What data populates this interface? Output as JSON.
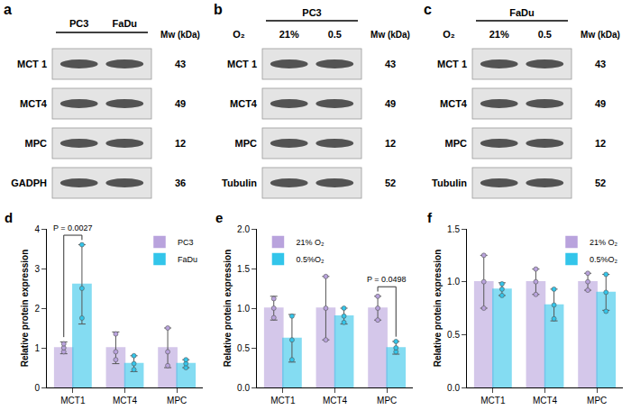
{
  "blots": [
    {
      "panel": "a",
      "columns": [
        "PC3",
        "FaDu"
      ],
      "mw_header": "Mw (kDa)",
      "rows": [
        {
          "label": "MCT 1",
          "mw": 43
        },
        {
          "label": "MCT4",
          "mw": 49
        },
        {
          "label": "MPC",
          "mw": 12
        },
        {
          "label": "GADPH",
          "mw": 36
        }
      ]
    },
    {
      "panel": "b",
      "group": "PC3",
      "condition_label": "O₂",
      "columns": [
        "21%",
        "0.5"
      ],
      "mw_header": "Mw (kDa)",
      "rows": [
        {
          "label": "MCT 1",
          "mw": 43
        },
        {
          "label": "MCT4",
          "mw": 49
        },
        {
          "label": "MPC",
          "mw": 12
        },
        {
          "label": "Tubulin",
          "mw": 52
        }
      ]
    },
    {
      "panel": "c",
      "group": "FaDu",
      "condition_label": "O₂",
      "columns": [
        "21%",
        "0.5"
      ],
      "mw_header": "Mw (kDa)",
      "rows": [
        {
          "label": "MCT 1",
          "mw": 43
        },
        {
          "label": "MCT4",
          "mw": 49
        },
        {
          "label": "MPC",
          "mw": 12
        },
        {
          "label": "Tubulin",
          "mw": 52
        }
      ]
    }
  ],
  "chart_data": [
    {
      "type": "bar",
      "panel": "d",
      "y_label": "Relative protein expression",
      "categories": [
        "MCT1",
        "MCT4",
        "MPC"
      ],
      "series": [
        {
          "name": "PC3",
          "color": "#b9a3dd",
          "values": [
            1.0,
            1.0,
            1.0
          ],
          "errors": [
            0.15,
            0.4,
            0.5
          ],
          "points": [
            [
              0.9,
              1.0,
              1.1
            ],
            [
              0.7,
              0.9,
              1.35
            ],
            [
              0.55,
              0.9,
              1.5
            ]
          ]
        },
        {
          "name": "FaDu",
          "color": "#33c5ea",
          "values": [
            2.6,
            0.6,
            0.6
          ],
          "errors": [
            1.0,
            0.2,
            0.1
          ],
          "points": [
            [
              1.75,
              2.5,
              3.6
            ],
            [
              0.45,
              0.6,
              0.8
            ],
            [
              0.5,
              0.6,
              0.7
            ]
          ]
        }
      ],
      "annotations": [
        {
          "category": "MCT1",
          "text": "P = 0.0027"
        }
      ],
      "ylim": [
        0,
        4
      ],
      "yticks": [
        0,
        1,
        2,
        3,
        4
      ],
      "grid": false,
      "legend": "upper right"
    },
    {
      "type": "bar",
      "panel": "e",
      "y_label": "Relative protein expression",
      "categories": [
        "MCT1",
        "MCT4",
        "MPC"
      ],
      "series": [
        {
          "name": "21% O₂",
          "color": "#b9a3dd",
          "values": [
            1.0,
            1.0,
            1.0
          ],
          "errors": [
            0.15,
            0.4,
            0.15
          ],
          "points": [
            [
              0.88,
              1.0,
              1.12
            ],
            [
              0.6,
              1.0,
              1.4
            ],
            [
              0.85,
              1.0,
              1.15
            ]
          ]
        },
        {
          "name": "0.5%O₂",
          "color": "#33c5ea",
          "values": [
            0.62,
            0.9,
            0.5
          ],
          "errors": [
            0.3,
            0.1,
            0.08
          ],
          "points": [
            [
              0.35,
              0.6,
              0.9
            ],
            [
              0.82,
              0.9,
              1.0
            ],
            [
              0.45,
              0.5,
              0.58
            ]
          ]
        }
      ],
      "annotations": [
        {
          "category": "MPC",
          "text": "P = 0.0498"
        }
      ],
      "ylim": [
        0,
        2.0
      ],
      "yticks": [
        {
          "value": 0,
          "label": "0.0"
        },
        {
          "value": 0.5,
          "label": "0.5"
        },
        {
          "value": 1.0,
          "label": "1.0"
        },
        {
          "value": 1.5,
          "label": "1.5"
        },
        {
          "value": 2.0,
          "label": "2.0"
        }
      ],
      "grid": false,
      "legend": "upper left"
    },
    {
      "type": "bar",
      "panel": "f",
      "y_label": "Relative protein expression",
      "categories": [
        "MCT1",
        "MCT4",
        "MPC"
      ],
      "series": [
        {
          "name": "21% O₂",
          "color": "#b9a3dd",
          "values": [
            1.0,
            1.0,
            1.0
          ],
          "errors": [
            0.25,
            0.12,
            0.08
          ],
          "points": [
            [
              0.75,
              1.0,
              1.25
            ],
            [
              0.88,
              1.0,
              1.12
            ],
            [
              0.92,
              1.0,
              1.08
            ]
          ]
        },
        {
          "name": "0.5%O₂",
          "color": "#33c5ea",
          "values": [
            0.93,
            0.78,
            0.9
          ],
          "errors": [
            0.06,
            0.15,
            0.17
          ],
          "points": [
            [
              0.87,
              0.93,
              0.98
            ],
            [
              0.65,
              0.78,
              0.93
            ],
            [
              0.72,
              0.9,
              1.07
            ]
          ]
        }
      ],
      "ylim": [
        0,
        1.5
      ],
      "yticks": [
        {
          "value": 0,
          "label": "0.0"
        },
        {
          "value": 0.5,
          "label": "0.5"
        },
        {
          "value": 1.0,
          "label": "1.0"
        },
        {
          "value": 1.5,
          "label": "1.5"
        }
      ],
      "grid": false,
      "legend": "upper right"
    }
  ]
}
